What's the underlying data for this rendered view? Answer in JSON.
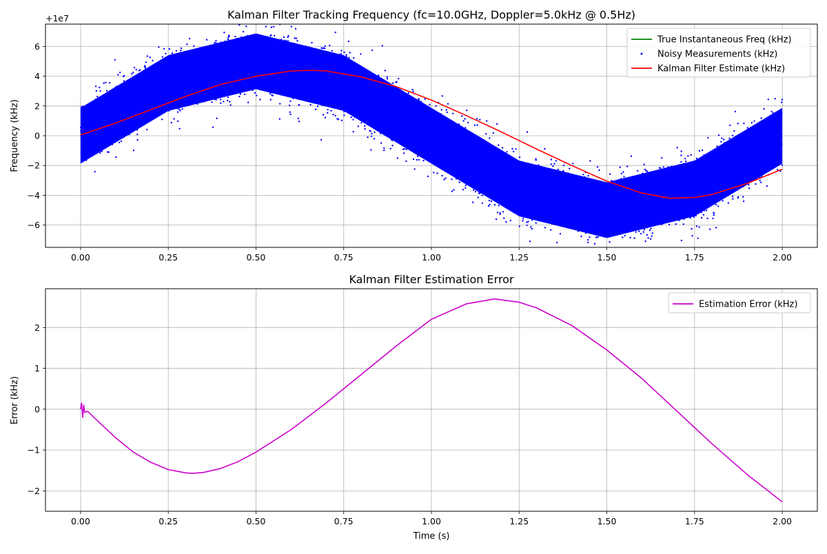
{
  "chart_data": [
    {
      "type": "line",
      "title": "Kalman Filter Tracking Frequency (fc=10.0GHz, Doppler=5.0kHz @ 0.5Hz)",
      "xlabel": "",
      "ylabel": "Frequency (kHz)",
      "offset_label": "+1e7",
      "xlim": [
        -0.1,
        2.1
      ],
      "ylim": [
        -7.5,
        7.5
      ],
      "xticks": [
        0.0,
        0.25,
        0.5,
        0.75,
        1.0,
        1.25,
        1.5,
        1.75,
        2.0
      ],
      "xtick_labels": [
        "0.00",
        "0.25",
        "0.50",
        "0.75",
        "1.00",
        "1.25",
        "1.50",
        "1.75",
        "2.00"
      ],
      "yticks": [
        -6,
        -4,
        -2,
        0,
        2,
        4,
        6
      ],
      "ytick_labels": [
        "−6",
        "−4",
        "−2",
        "0",
        "2",
        "4",
        "6"
      ],
      "grid": true,
      "legend_position": "upper-right",
      "series": [
        {
          "name": "True Instantaneous Freq (kHz)",
          "style": "line",
          "color": "#008000",
          "x": [
            0,
            0.25,
            0.5,
            0.75,
            1.0,
            1.25,
            1.5,
            1.75,
            2.0
          ],
          "y": [
            0,
            3.54,
            5.0,
            3.54,
            0,
            -3.54,
            -5.0,
            -3.54,
            0
          ]
        },
        {
          "name": "Noisy Measurements (kHz)",
          "style": "scatter",
          "color": "#0000ff",
          "description": "true frequency plus heavy noise; band spans roughly ±2.5 around the curve",
          "band_center_x": [
            0,
            0.25,
            0.5,
            0.75,
            1.0,
            1.25,
            1.5,
            1.75,
            2.0
          ],
          "band_center_y": [
            0,
            3.54,
            5.0,
            3.54,
            0,
            -3.54,
            -5.0,
            -3.54,
            0
          ],
          "band_halfwidth": 2.6
        },
        {
          "name": "Kalman Filter Estimate (kHz)",
          "style": "line",
          "color": "#ff0000",
          "x": [
            0,
            0.1,
            0.2,
            0.3,
            0.4,
            0.5,
            0.6,
            0.66,
            0.7,
            0.8,
            0.9,
            1.0,
            1.1,
            1.2,
            1.3,
            1.4,
            1.5,
            1.6,
            1.68,
            1.75,
            1.8,
            1.9,
            2.0
          ],
          "y": [
            0.05,
            0.85,
            1.75,
            2.65,
            3.45,
            4.0,
            4.35,
            4.4,
            4.35,
            3.95,
            3.3,
            2.4,
            1.35,
            0.25,
            -0.9,
            -2.0,
            -3.05,
            -3.85,
            -4.2,
            -4.15,
            -3.95,
            -3.2,
            -2.25
          ]
        }
      ]
    },
    {
      "type": "line",
      "title": "Kalman Filter Estimation Error",
      "xlabel": "Time (s)",
      "ylabel": "Error (kHz)",
      "xlim": [
        -0.1,
        2.1
      ],
      "ylim": [
        -2.5,
        2.95
      ],
      "xticks": [
        0.0,
        0.25,
        0.5,
        0.75,
        1.0,
        1.25,
        1.5,
        1.75,
        2.0
      ],
      "xtick_labels": [
        "0.00",
        "0.25",
        "0.50",
        "0.75",
        "1.00",
        "1.25",
        "1.50",
        "1.75",
        "2.00"
      ],
      "yticks": [
        -2,
        -1,
        0,
        1,
        2
      ],
      "ytick_labels": [
        "−2",
        "−1",
        "0",
        "1",
        "2"
      ],
      "grid": true,
      "legend_position": "upper-right",
      "series": [
        {
          "name": "Estimation Error (kHz)",
          "style": "line",
          "color": "#cc00cc",
          "x": [
            0,
            0.003,
            0.006,
            0.009,
            0.012,
            0.02,
            0.05,
            0.1,
            0.15,
            0.2,
            0.25,
            0.3,
            0.32,
            0.35,
            0.4,
            0.45,
            0.5,
            0.6,
            0.7,
            0.8,
            0.9,
            1.0,
            1.1,
            1.18,
            1.25,
            1.3,
            1.4,
            1.5,
            1.6,
            1.7,
            1.8,
            1.9,
            2.0
          ],
          "y": [
            0,
            0.15,
            -0.2,
            0.1,
            -0.08,
            -0.05,
            -0.3,
            -0.7,
            -1.05,
            -1.3,
            -1.48,
            -1.56,
            -1.57,
            -1.55,
            -1.45,
            -1.28,
            -1.05,
            -0.5,
            0.15,
            0.85,
            1.55,
            2.2,
            2.58,
            2.7,
            2.62,
            2.48,
            2.05,
            1.45,
            0.75,
            -0.05,
            -0.85,
            -1.6,
            -2.27
          ]
        }
      ]
    }
  ]
}
